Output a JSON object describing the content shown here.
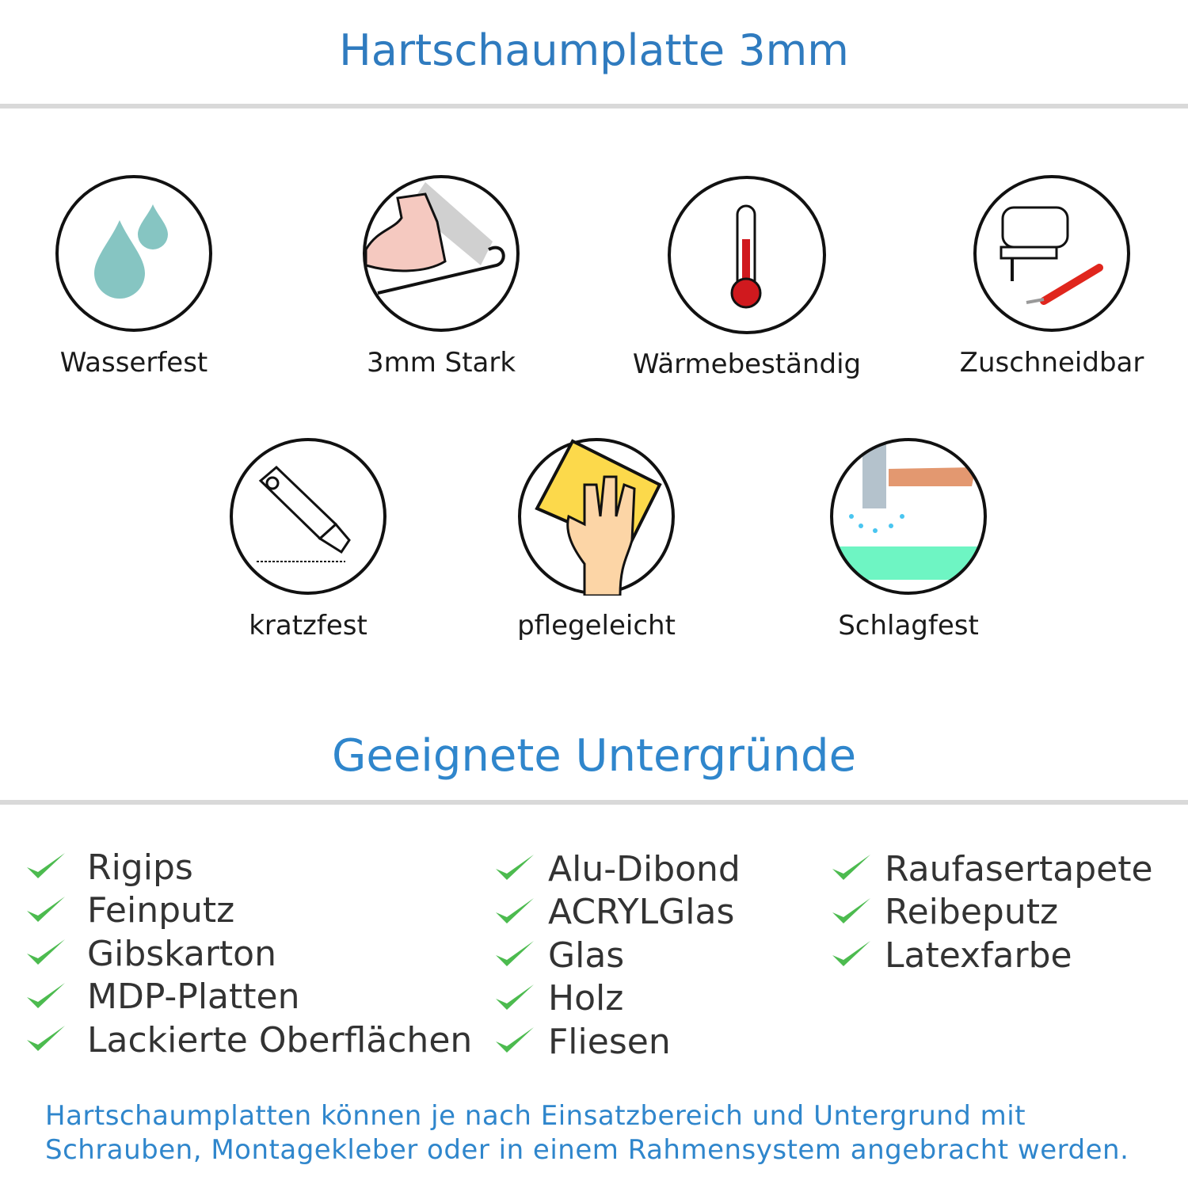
{
  "header": {
    "title": "Hartschaumplatte 3mm"
  },
  "features": [
    {
      "label": "Wasserfest",
      "icon": "water-drops-icon"
    },
    {
      "label": "3mm Stark",
      "icon": "strong-arm-icon"
    },
    {
      "label": "Wärmebeständig",
      "icon": "thermometer-icon"
    },
    {
      "label": "Zuschneidbar",
      "icon": "jigsaw-icon"
    },
    {
      "label": "kratzfest",
      "icon": "cutter-knife-icon"
    },
    {
      "label": "pflegeleicht",
      "icon": "cleaning-sponge-hand-icon"
    },
    {
      "label": "Schlagfest",
      "icon": "hammer-icon"
    }
  ],
  "surfaces": {
    "title": "Geeignete Untergründe",
    "columns": [
      [
        "Rigips",
        "Feinputz",
        "Gibskarton",
        "MDP-Platten",
        "Lackierte Oberflächen"
      ],
      [
        "Alu-Dibond",
        "ACRYLGlas",
        "Glas",
        "Holz",
        "Fliesen"
      ],
      [
        "Raufasertapete",
        "Reibeputz",
        "Latexfarbe"
      ]
    ]
  },
  "footer": {
    "line1": "Hartschaumplatten können je nach Einsatzbereich und Untergrund mit",
    "line2": "Schrauben, Montagekleber oder in einem Rahmensystem angebracht werden."
  },
  "colors": {
    "title": "#2f7bbf",
    "subtitle": "#2f86cc",
    "check": "#4cbb4f",
    "rule": "#d9d9d9"
  }
}
